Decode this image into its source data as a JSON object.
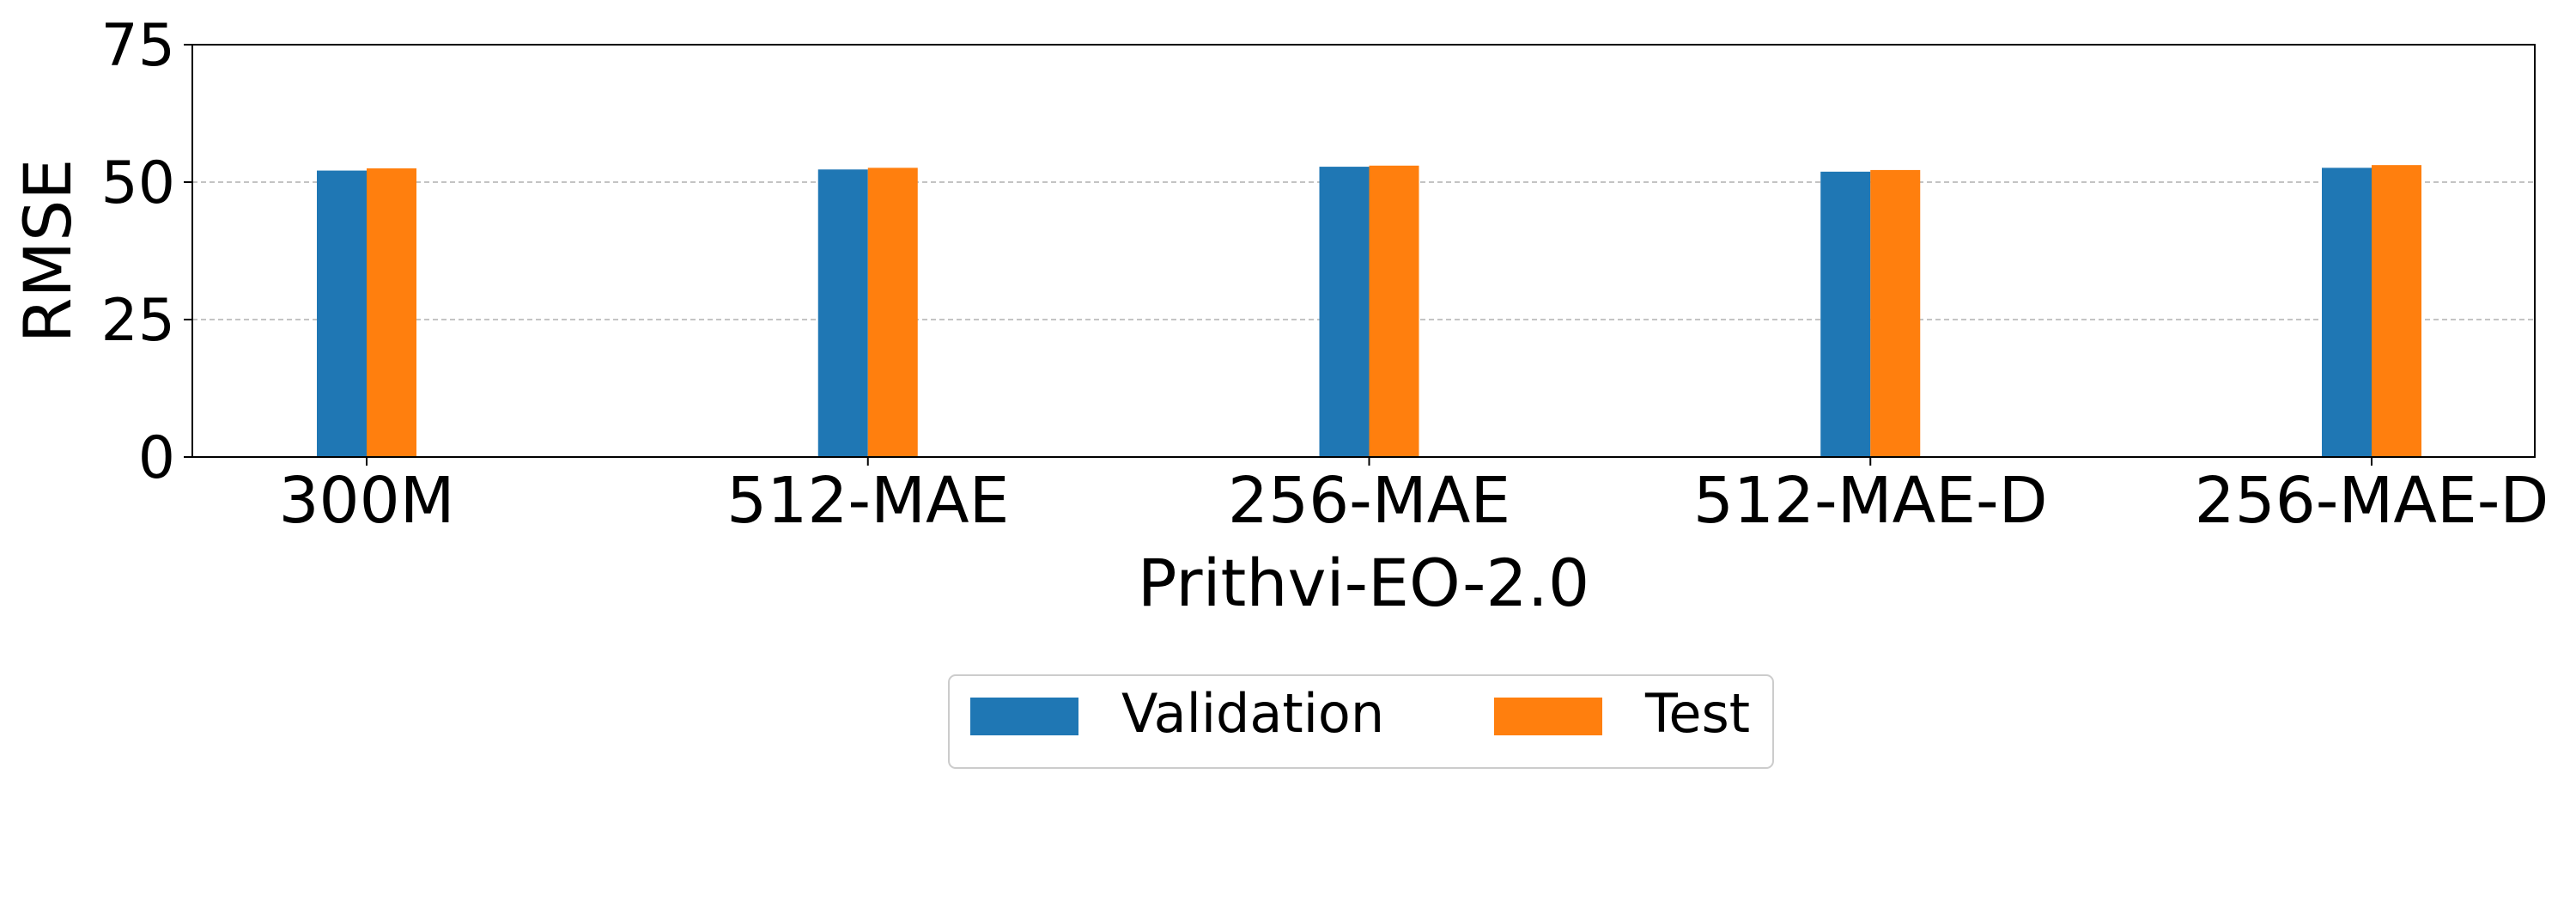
{
  "chart_data": {
    "type": "bar",
    "title": "",
    "xlabel": "Prithvi-EO-2.0",
    "ylabel": "RMSE",
    "ylim": [
      0,
      75
    ],
    "yticks": [
      0,
      25,
      50,
      75
    ],
    "grid": "y-dashed",
    "legend_position": "bottom-center",
    "categories": [
      "300M",
      "512-MAE",
      "256-MAE",
      "512-MAE-D",
      "256-MAE-D"
    ],
    "series": [
      {
        "name": "Validation",
        "color": "#1f77b4",
        "values": [
          52.1,
          52.3,
          52.8,
          51.9,
          52.6
        ]
      },
      {
        "name": "Test",
        "color": "#ff7f0e",
        "values": [
          52.5,
          52.6,
          53.0,
          52.2,
          53.1
        ]
      }
    ]
  }
}
